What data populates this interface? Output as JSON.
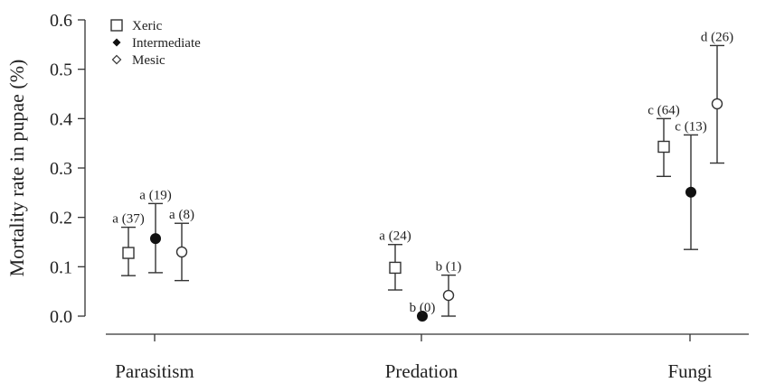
{
  "chart_data": {
    "type": "scatter",
    "ylabel": "Mortality rate in pupae (%)",
    "xlabel": "",
    "categories": [
      "Parasitism",
      "Predation",
      "Fungi"
    ],
    "ylim": [
      0,
      0.6
    ],
    "yticks": [
      "0.0",
      "0.1",
      "0.2",
      "0.3",
      "0.4",
      "0.5",
      "0.6"
    ],
    "legend_position": "top-left",
    "series": [
      {
        "name": "Xeric",
        "marker": "square-open",
        "values": [
          0.128,
          0.098,
          0.343
        ],
        "lower": [
          0.082,
          0.053,
          0.283
        ],
        "upper": [
          0.18,
          0.145,
          0.4
        ],
        "labels": [
          "a (37)",
          "a (24)",
          "c (64)"
        ]
      },
      {
        "name": "Intermediate",
        "marker": "circle-filled",
        "values": [
          0.157,
          0.0,
          0.251
        ],
        "lower": [
          0.088,
          0.0,
          0.135
        ],
        "upper": [
          0.228,
          0.0,
          0.367
        ],
        "labels": [
          "a (19)",
          "b (0)",
          "c (13)"
        ]
      },
      {
        "name": "Mesic",
        "marker": "circle-open",
        "values": [
          0.13,
          0.042,
          0.43
        ],
        "lower": [
          0.072,
          0.0,
          0.31
        ],
        "upper": [
          0.188,
          0.083,
          0.548
        ],
        "labels": [
          "a (8)",
          "b (1)",
          "d (26)"
        ]
      }
    ]
  }
}
